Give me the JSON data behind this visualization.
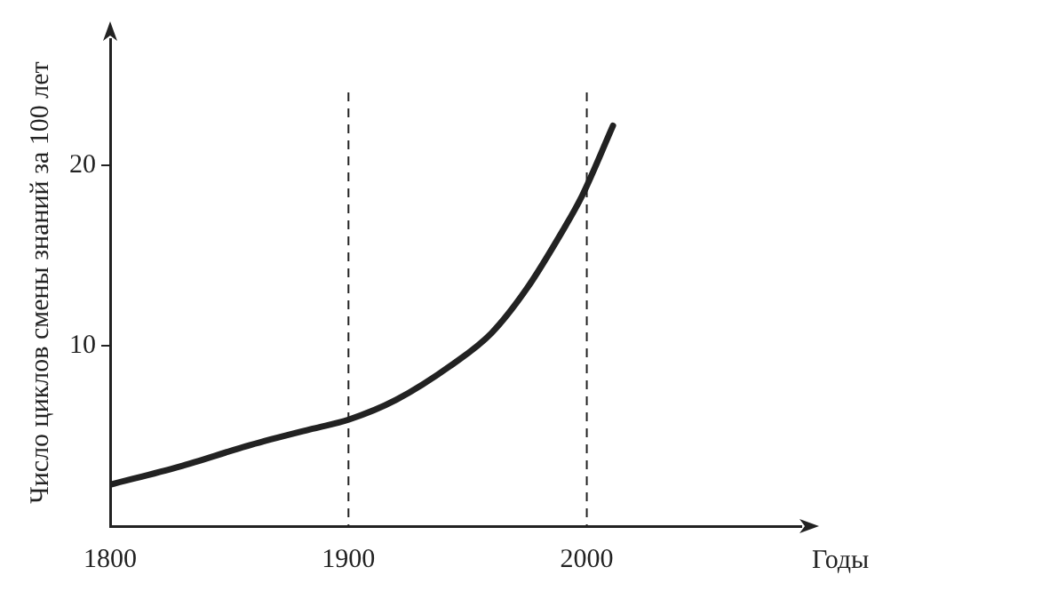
{
  "chart_data": {
    "type": "line",
    "xlabel": "Годы",
    "ylabel": "Число циклов смены знаний за 100 лет",
    "x": [
      1800,
      1829,
      1859,
      1885,
      1900,
      1920,
      1944,
      1960,
      1975,
      1990,
      1998,
      2011
    ],
    "series": [
      {
        "color": "#222222",
        "values": [
          2.3,
          3.3,
          4.5,
          5.4,
          5.9,
          7.0,
          9.0,
          10.7,
          13.2,
          16.4,
          18.3,
          22.2
        ]
      }
    ],
    "xlim": [
      1800,
      2090
    ],
    "xticks": [
      1800,
      1900,
      2000
    ],
    "ylim": [
      0,
      27
    ],
    "yticks": [
      10,
      20
    ],
    "ref_lines": [
      {
        "axis": "x",
        "value": 1900,
        "color": "#222222",
        "line_style": "dashed"
      },
      {
        "axis": "x",
        "value": 2000,
        "color": "#222222",
        "line_style": "dashed"
      }
    ],
    "grid": false,
    "legend": false,
    "marker": "none",
    "line_style": "solid"
  }
}
